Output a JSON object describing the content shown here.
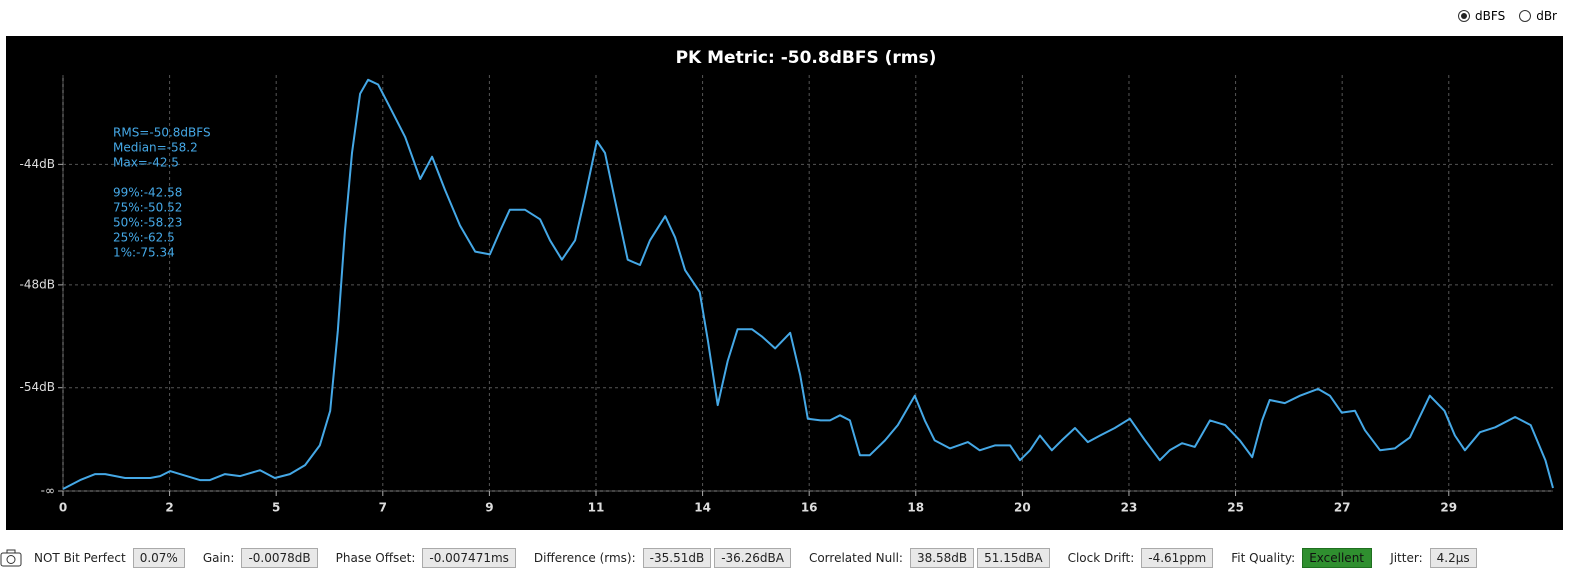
{
  "units": [
    {
      "label": "dBFS",
      "selected": true
    },
    {
      "label": "dBr",
      "selected": false
    }
  ],
  "chart_data": {
    "type": "line",
    "title": "PK Metric: -50.8dBFS (rms)",
    "yscale": "amplitude",
    "grid": true,
    "color": "#45a8e6",
    "annotations": [
      "RMS=-50.8dBFS",
      "Median=-58.2",
      "Max=-42.5"
    ],
    "percentiles": [
      "99%:-42.58",
      "75%:-50.52",
      "50%:-58.23",
      "25%:-62.5",
      "1%:-75.34"
    ],
    "xlim": [
      0,
      31.45
    ],
    "xticks": [
      0,
      {
        "value": 2.25,
        "label": "2"
      },
      {
        "value": 4.5,
        "label": "5"
      },
      {
        "value": 6.75,
        "label": "7"
      },
      9,
      {
        "value": 11.25,
        "label": "11"
      },
      {
        "value": 13.5,
        "label": "14"
      },
      {
        "value": 15.75,
        "label": "16"
      },
      18,
      {
        "value": 20.25,
        "label": "20"
      },
      {
        "value": 22.5,
        "label": "23"
      },
      {
        "value": 24.75,
        "label": "25"
      },
      27,
      {
        "value": 29.25,
        "label": "29"
      }
    ],
    "ylim": [
      null,
      -41.9
    ],
    "yticks": [
      {
        "value": null,
        "label": "-∞"
      },
      {
        "value": -54,
        "label": "-54dB"
      },
      {
        "value": -48,
        "label": "-48dB"
      },
      {
        "value": -44,
        "label": "-44dB"
      }
    ],
    "x": [
      0,
      0.36,
      0.68,
      0.89,
      1.31,
      1.84,
      2.05,
      2.26,
      2.47,
      2.89,
      3.1,
      3.42,
      3.74,
      4.16,
      4.47,
      4.79,
      5.11,
      5.42,
      5.64,
      5.8,
      5.95,
      6.1,
      6.27,
      6.44,
      6.65,
      6.9,
      7.22,
      7.54,
      7.79,
      8.06,
      8.38,
      8.7,
      9.01,
      9.22,
      9.43,
      9.75,
      10.07,
      10.28,
      10.53,
      10.81,
      11.02,
      11.27,
      11.44,
      11.65,
      11.92,
      12.18,
      12.39,
      12.71,
      12.92,
      13.13,
      13.44,
      13.61,
      13.82,
      14.03,
      14.24,
      14.54,
      14.75,
      15.03,
      15.35,
      15.56,
      15.72,
      15.99,
      16.19,
      16.4,
      16.61,
      16.82,
      17.03,
      17.35,
      17.62,
      17.98,
      18.19,
      18.4,
      18.72,
      19.1,
      19.35,
      19.67,
      19.99,
      20.2,
      20.41,
      20.62,
      20.87,
      21.08,
      21.36,
      21.63,
      21.89,
      22.2,
      22.52,
      22.84,
      23.15,
      23.36,
      23.62,
      23.89,
      24.21,
      24.53,
      24.84,
      25.1,
      25.31,
      25.47,
      25.79,
      26.11,
      26.49,
      26.74,
      26.99,
      27.27,
      27.48,
      27.8,
      28.11,
      28.43,
      28.85,
      29.16,
      29.38,
      29.59,
      29.91,
      30.23,
      30.65,
      30.98,
      31.29,
      31.45
    ],
    "values": [
      -88.3,
      -73.5,
      -69.7,
      -69.7,
      -72.0,
      -72.0,
      -70.8,
      -68.3,
      -69.7,
      -73.5,
      -73.5,
      -69.7,
      -70.8,
      -67.9,
      -72.0,
      -69.7,
      -66.0,
      -61.1,
      -56.2,
      -50.2,
      -46.0,
      -43.7,
      -42.3,
      -42.0,
      -42.1,
      -42.6,
      -43.3,
      -44.4,
      -43.8,
      -44.7,
      -45.8,
      -46.7,
      -46.8,
      -46.0,
      -45.3,
      -45.3,
      -45.6,
      -46.3,
      -47.0,
      -46.3,
      -44.9,
      -43.4,
      -43.7,
      -45.0,
      -47.0,
      -47.2,
      -46.3,
      -45.5,
      -46.2,
      -47.4,
      -48.3,
      -50.7,
      -55.6,
      -52.0,
      -50.1,
      -50.1,
      -50.5,
      -51.2,
      -50.3,
      -53.0,
      -57.1,
      -57.3,
      -57.3,
      -56.7,
      -57.3,
      -63.2,
      -63.2,
      -60.2,
      -57.9,
      -54.7,
      -57.3,
      -60.2,
      -61.7,
      -60.5,
      -62.1,
      -61.1,
      -61.1,
      -64.5,
      -62.1,
      -59.4,
      -62.1,
      -60.2,
      -58.3,
      -60.5,
      -59.4,
      -58.3,
      -57.1,
      -60.2,
      -64.5,
      -62.1,
      -60.7,
      -61.4,
      -57.3,
      -57.9,
      -60.2,
      -63.7,
      -57.3,
      -55.1,
      -55.4,
      -54.7,
      -54.1,
      -54.7,
      -56.4,
      -56.2,
      -58.6,
      -62.1,
      -61.7,
      -59.7,
      -54.7,
      -56.2,
      -59.4,
      -62.1,
      -58.9,
      -58.2,
      -56.9,
      -57.9,
      -64.5,
      -84.8
    ]
  },
  "status": [
    {
      "label": "NOT Bit Perfect",
      "values": [
        "0.07%"
      ]
    },
    {
      "label": "Gain:",
      "values": [
        "-0.0078dB"
      ]
    },
    {
      "label": "Phase Offset:",
      "values": [
        "-0.007471ms"
      ]
    },
    {
      "label": "Difference (rms):",
      "values": [
        "-35.51dB",
        "-36.26dBA"
      ]
    },
    {
      "label": "Correlated Null:",
      "values": [
        "38.58dB",
        "51.15dBA"
      ]
    },
    {
      "label": "Clock Drift:",
      "values": [
        "-4.61ppm"
      ]
    },
    {
      "label": "Fit Quality:",
      "values": [
        "Excellent"
      ]
    },
    {
      "label": "Jitter:",
      "values": [
        "4.2µs"
      ]
    }
  ]
}
